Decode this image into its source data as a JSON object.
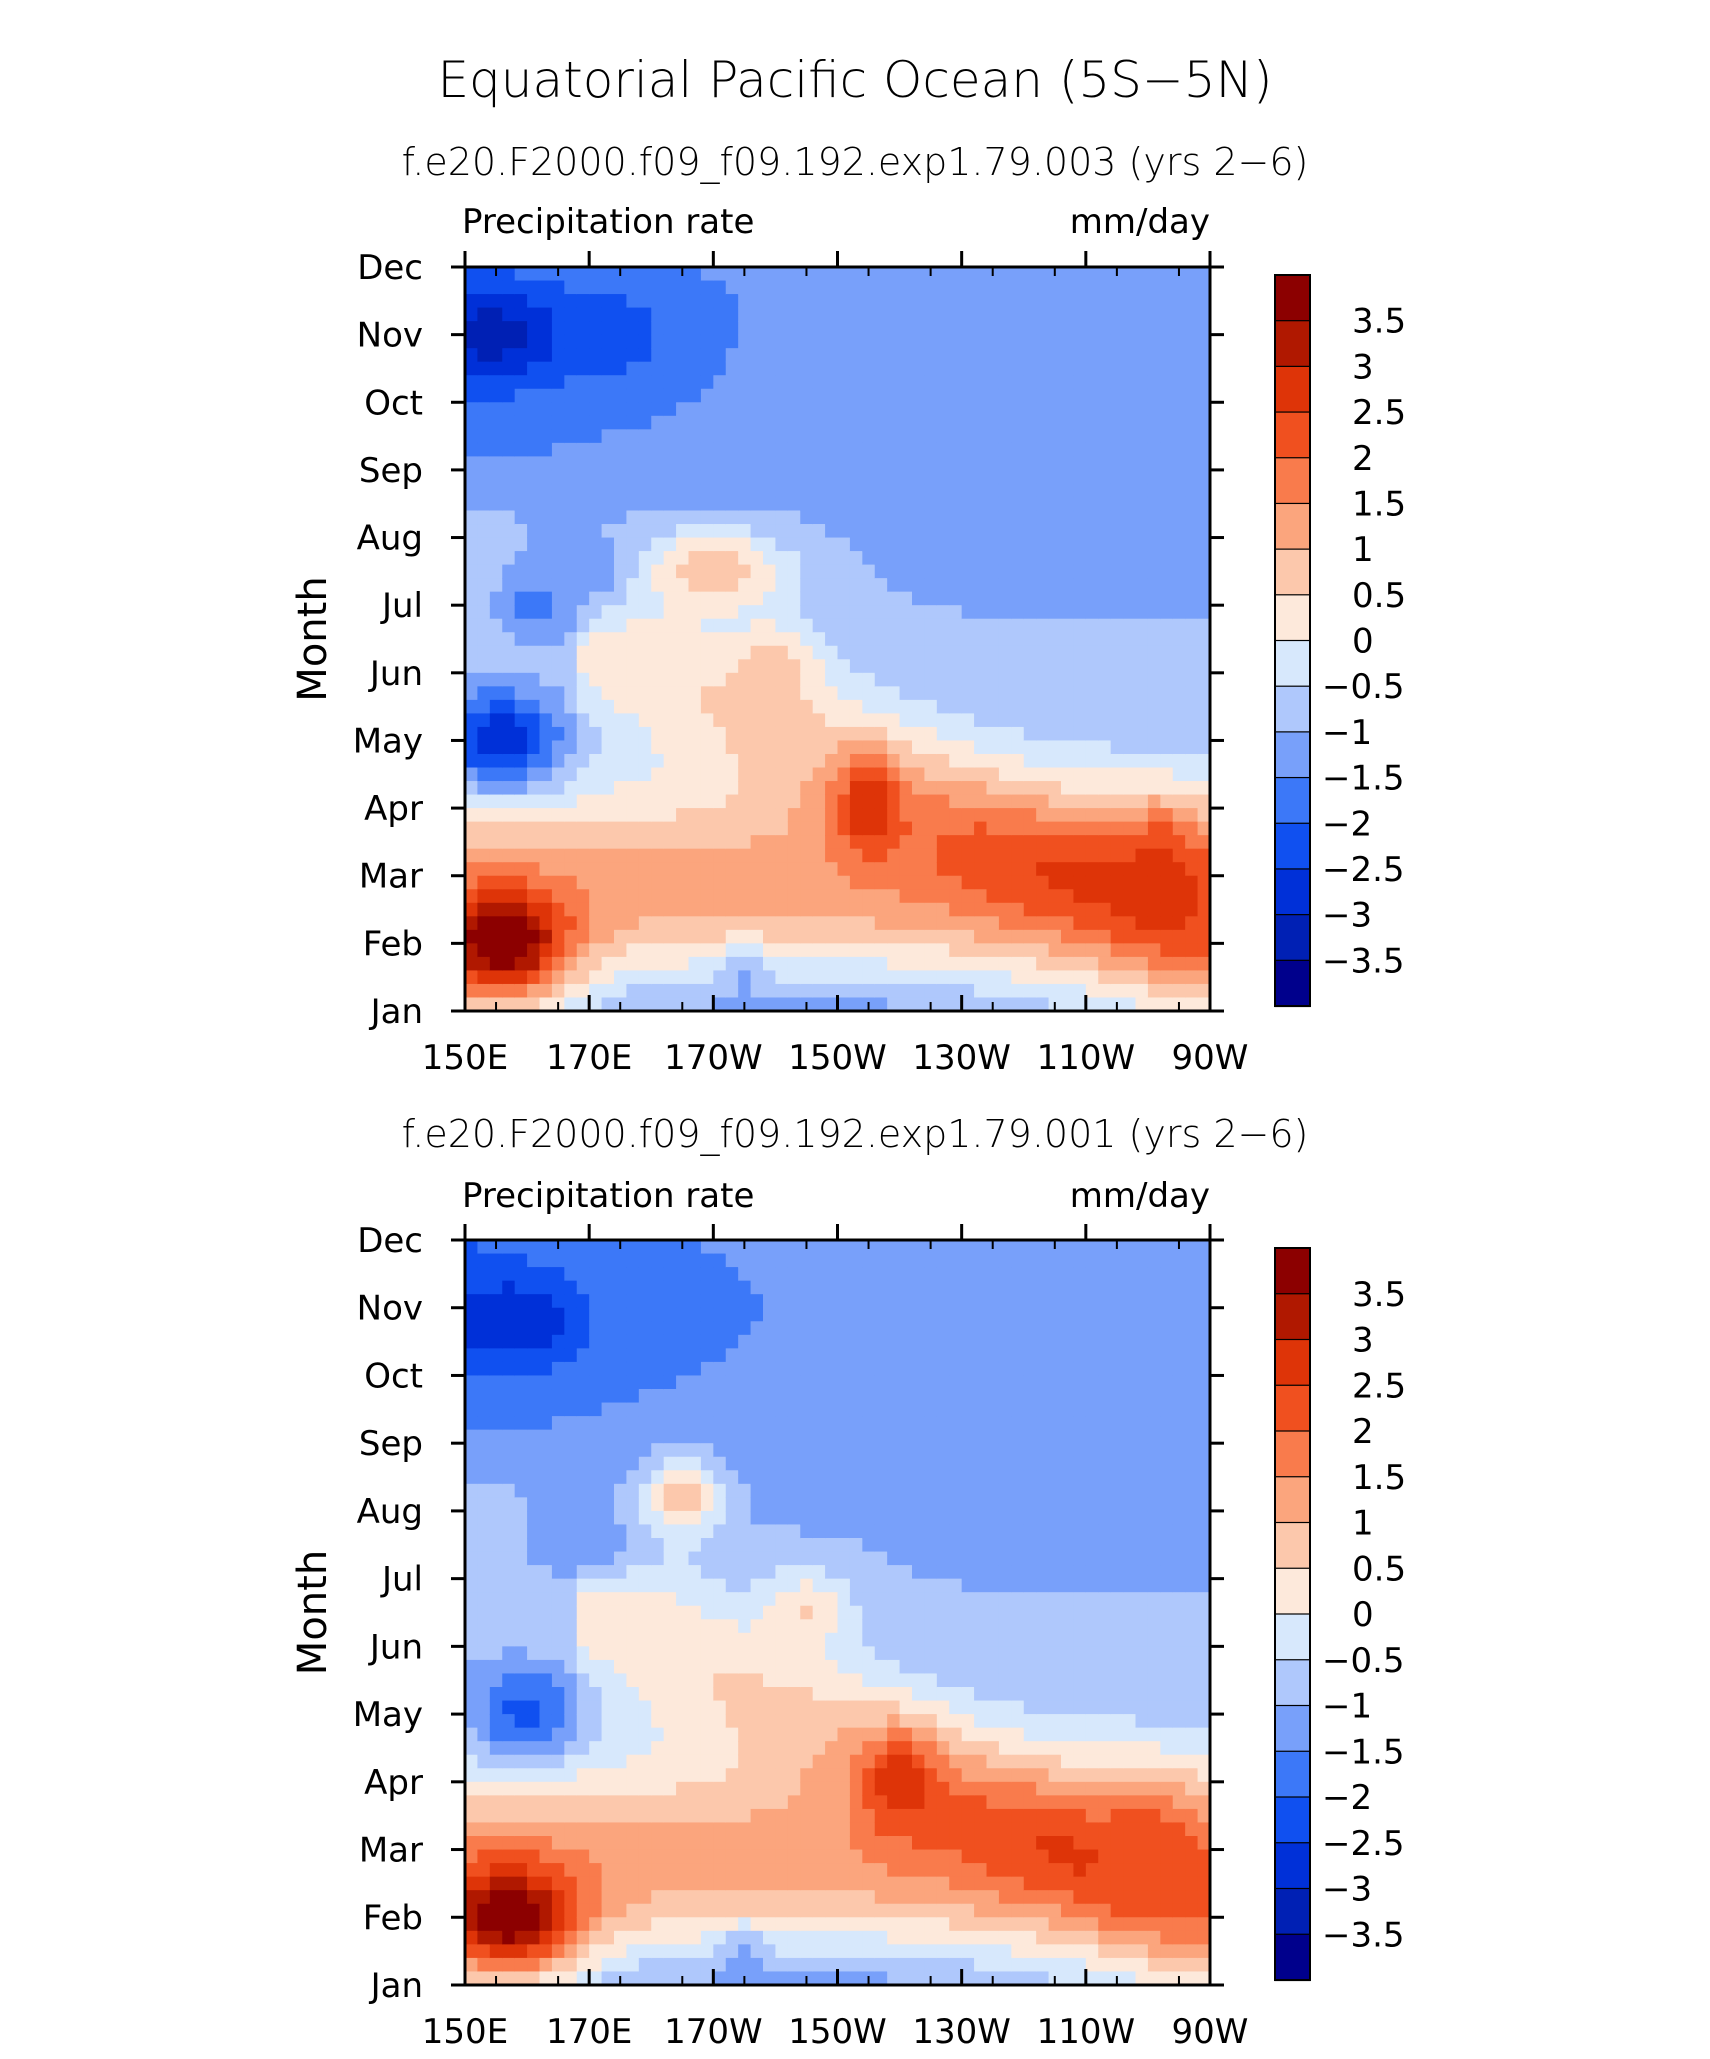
{
  "title": "Equatorial Pacific Ocean (5S−5N)",
  "chart_data": [
    {
      "type": "heatmap",
      "subtitle": "f.e20.F2000.f09_f09.192.exp1.79.003 (yrs 2−6)",
      "variable_label": "Precipitation rate",
      "units_label": "mm/day",
      "ylabel": "Month",
      "x_tick_labels": [
        "150E",
        "170E",
        "170W",
        "150W",
        "130W",
        "110W",
        "90W"
      ],
      "y_tick_labels": [
        "Jan",
        "Feb",
        "Mar",
        "Apr",
        "May",
        "Jun",
        "Jul",
        "Aug",
        "Sep",
        "Oct",
        "Nov",
        "Dec"
      ],
      "blobs": [
        {
          "lon": 155,
          "mon": 10.0,
          "v": -3.3,
          "r": 0.05,
          "w": 1.8
        },
        {
          "lon": 174,
          "mon": 10.0,
          "v": -2.3,
          "r": 0.05,
          "w": 1.3
        },
        {
          "lon": 156,
          "mon": 4.0,
          "v": -2.9,
          "r": 0.06,
          "w": 1.3
        },
        {
          "lon": 162,
          "mon": 6.0,
          "v": -1.7,
          "r": 0.05,
          "w": 1.3
        },
        {
          "lon": 170,
          "mon": 6.5,
          "v": -1.5,
          "r": 0.05,
          "w": 1.8
        },
        {
          "lon": 190,
          "mon": 6.5,
          "v": 0.9,
          "r": 0.05,
          "w": 2.0
        },
        {
          "lon": 200,
          "mon": 5.0,
          "v": 0.8,
          "r": 0.06,
          "w": 1.0
        },
        {
          "lon": 255,
          "mon": 7.5,
          "v": -1.5,
          "r": 0.06,
          "w": 2.2
        },
        {
          "lon": 210,
          "mon": 9.5,
          "v": -1.2,
          "r": 0.06,
          "w": 1.8
        },
        {
          "lon": 215,
          "mon": 3.0,
          "v": 3.0,
          "r": 0.06,
          "w": 0.7
        },
        {
          "lon": 262,
          "mon": 2.0,
          "v": 2.7,
          "r": 0.08,
          "w": 0.8
        },
        {
          "lon": 156,
          "mon": 1.0,
          "v": 4.3,
          "r": 0.07,
          "w": 1.3
        },
        {
          "lon": 195,
          "mon": 0.6,
          "v": -0.6,
          "r": 0.03,
          "w": 1.0
        }
      ],
      "colorbar_labels": [
        "3.5",
        "3",
        "2.5",
        "2",
        "1.5",
        "1",
        "0.5",
        "0",
        "−0.5",
        "−1",
        "−1.5",
        "−2",
        "−2.5",
        "−3",
        "−3.5"
      ]
    },
    {
      "type": "heatmap",
      "subtitle": "f.e20.F2000.f09_f09.192.exp1.79.001 (yrs 2−6)",
      "variable_label": "Precipitation rate",
      "units_label": "mm/day",
      "ylabel": "Month",
      "x_tick_labels": [
        "150E",
        "170E",
        "170W",
        "150W",
        "130W",
        "110W",
        "90W"
      ],
      "y_tick_labels": [
        "Jan",
        "Feb",
        "Mar",
        "Apr",
        "May",
        "Jun",
        "Jul",
        "Aug",
        "Sep",
        "Oct",
        "Nov",
        "Dec"
      ],
      "blobs": [
        {
          "lon": 158,
          "mon": 9.8,
          "v": -3.0,
          "r": 0.05,
          "w": 1.6
        },
        {
          "lon": 160,
          "mon": 4.0,
          "v": -2.2,
          "r": 0.06,
          "w": 1.2
        },
        {
          "lon": 168,
          "mon": 6.5,
          "v": -1.5,
          "r": 0.05,
          "w": 1.6
        },
        {
          "lon": 185,
          "mon": 7.2,
          "v": 0.8,
          "r": 0.05,
          "w": 1.0
        },
        {
          "lon": 205,
          "mon": 5.5,
          "v": 0.5,
          "r": 0.05,
          "w": 1.2
        },
        {
          "lon": 220,
          "mon": 3.0,
          "v": 2.9,
          "r": 0.06,
          "w": 0.8
        },
        {
          "lon": 260,
          "mon": 2.0,
          "v": 2.3,
          "r": 0.08,
          "w": 0.8
        },
        {
          "lon": 157,
          "mon": 1.0,
          "v": 4.1,
          "r": 0.07,
          "w": 1.4
        },
        {
          "lon": 195,
          "mon": 0.5,
          "v": -0.6,
          "r": 0.03,
          "w": 1.0
        },
        {
          "lon": 220,
          "mon": 9.5,
          "v": -1.3,
          "r": 0.06,
          "w": 1.6
        }
      ],
      "colorbar_labels": [
        "3.5",
        "3",
        "2.5",
        "2",
        "1.5",
        "1",
        "0.5",
        "0",
        "−0.5",
        "−1",
        "−1.5",
        "−2",
        "−2.5",
        "−3",
        "−3.5"
      ]
    }
  ],
  "colors": {
    "levels": [
      "#00008c",
      "#0020b4",
      "#0030d8",
      "#1050f0",
      "#3c78f8",
      "#78a0fa",
      "#afc8fc",
      "#d7e8fc",
      "#fde9db",
      "#fcc8ac",
      "#fba57d",
      "#f97b4c",
      "#f0501f",
      "#de3408",
      "#b01800",
      "#8c0000"
    ]
  }
}
